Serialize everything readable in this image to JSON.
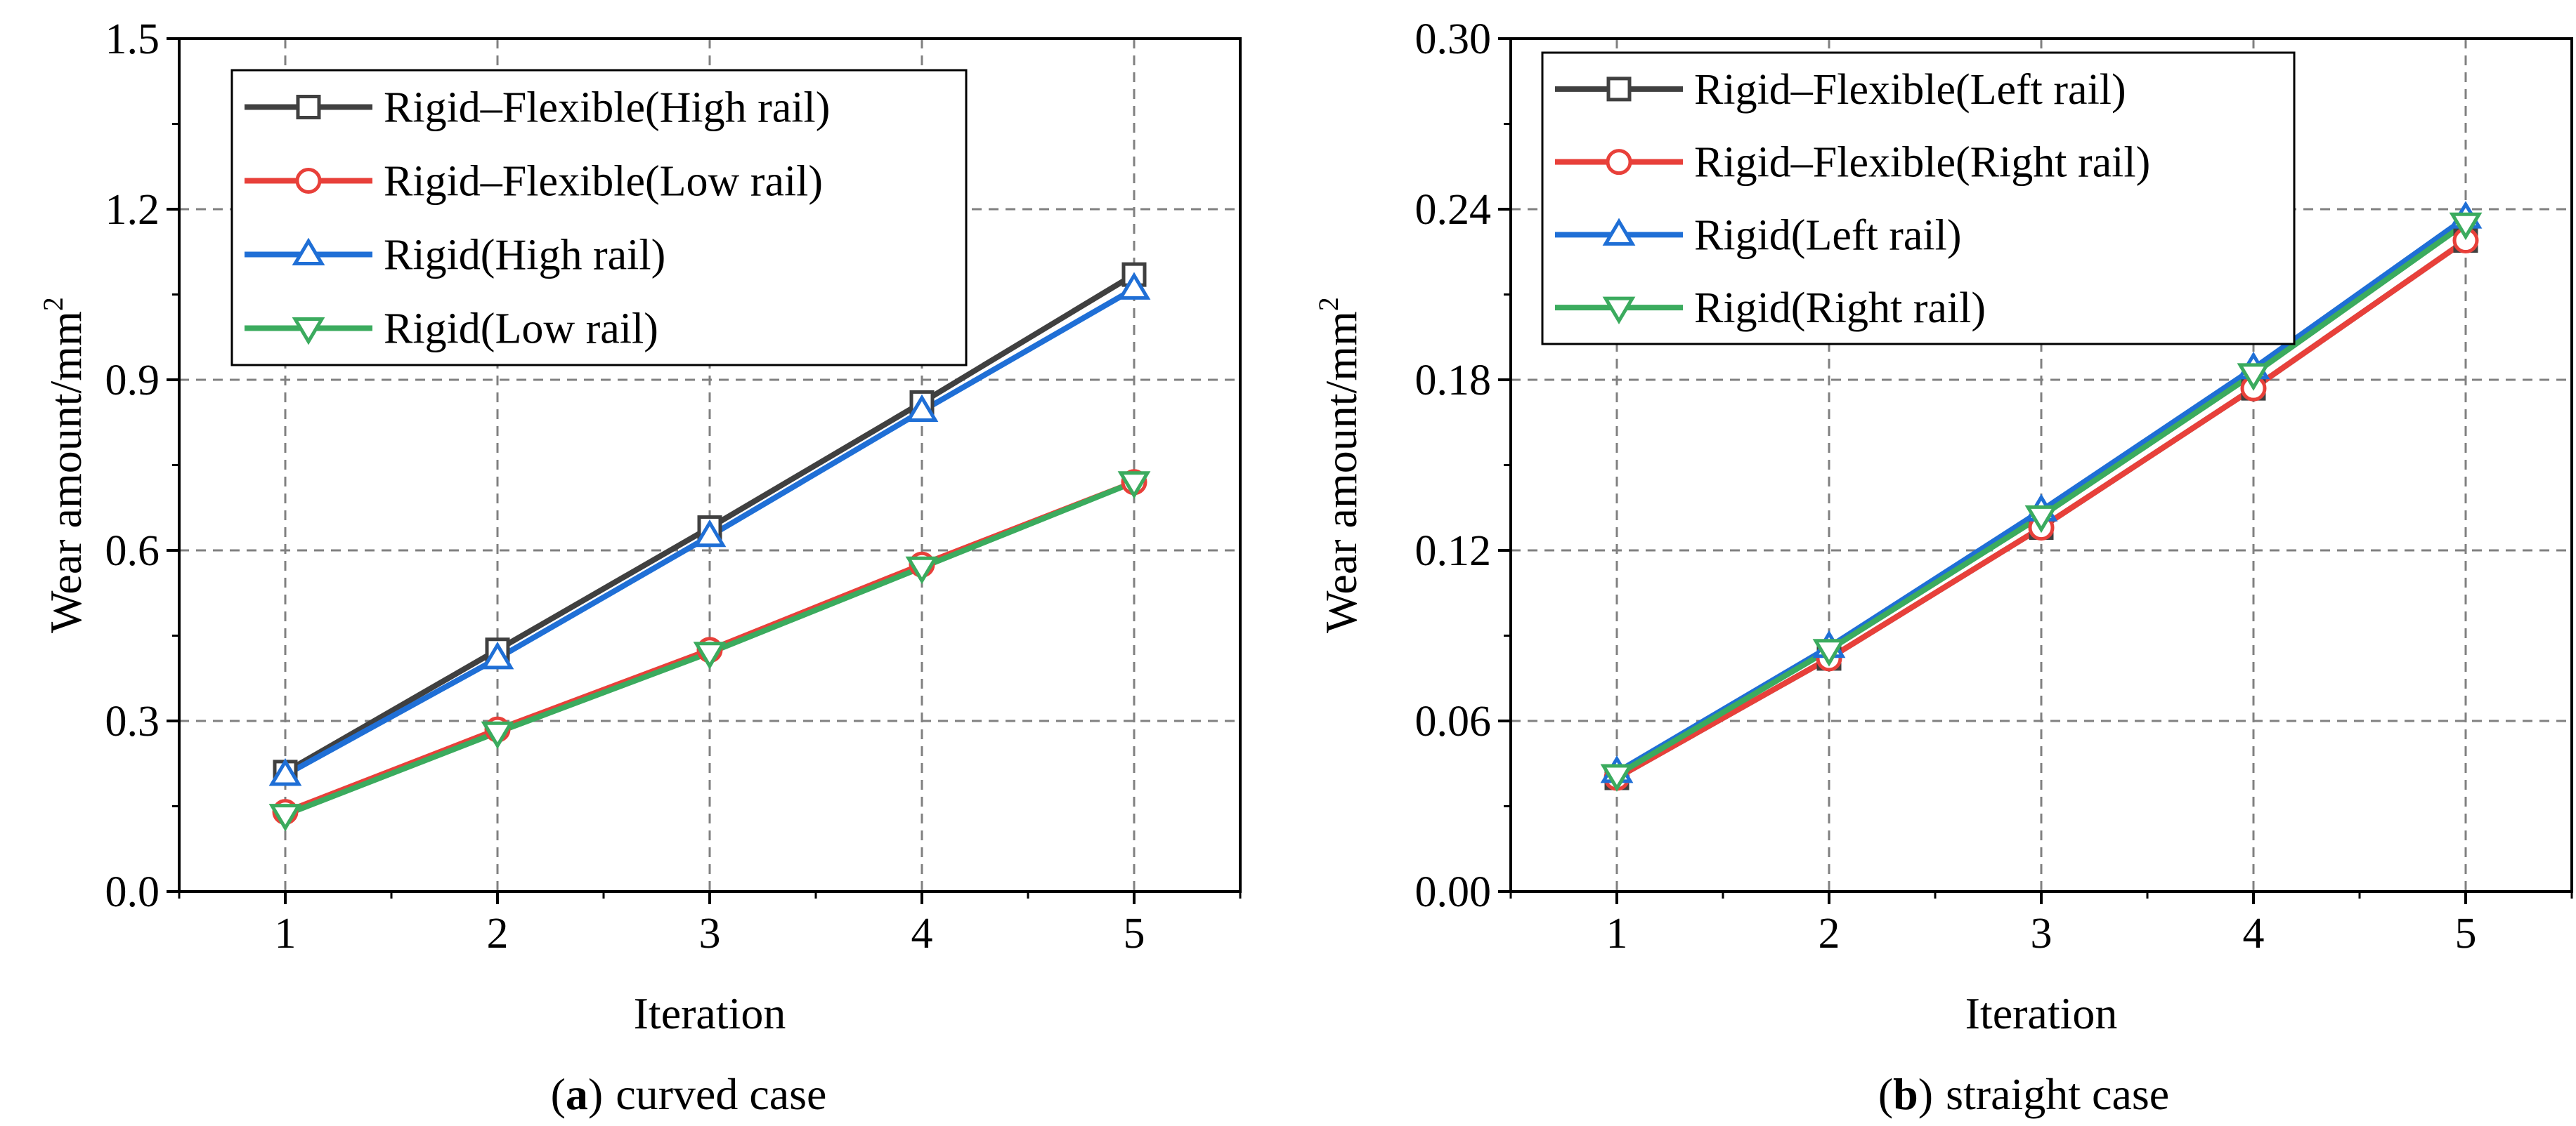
{
  "chart_data": [
    {
      "type": "line",
      "caption": {
        "open": "(",
        "letter": "a",
        "close": ")",
        "text": "curved case"
      },
      "xlabel": "Iteration",
      "ylabel": "Wear amount/mm",
      "ylabel_sup": "2",
      "x": [
        1,
        2,
        3,
        4,
        5
      ],
      "xlim": [
        0.5,
        5.5
      ],
      "ylim": [
        0.0,
        1.5
      ],
      "x_ticks": [
        "1",
        "2",
        "3",
        "4",
        "5"
      ],
      "y_ticks": [
        0.0,
        0.3,
        0.6,
        0.9,
        1.2,
        1.5
      ],
      "y_tick_labels": [
        "0.0",
        "0.3",
        "0.6",
        "0.9",
        "1.2",
        "1.5"
      ],
      "grid": true,
      "legend_position": "top-left",
      "series": [
        {
          "name": "Rigid–Flexible(High rail)",
          "color": "#404040",
          "marker": "square",
          "values": [
            0.21,
            0.425,
            0.64,
            0.86,
            1.085
          ]
        },
        {
          "name": "Rigid–Flexible(Low rail)",
          "color": "#e8403a",
          "marker": "circle",
          "values": [
            0.14,
            0.285,
            0.425,
            0.575,
            0.72
          ]
        },
        {
          "name": "Rigid(High rail)",
          "color": "#1f6fd6",
          "marker": "triangle-up",
          "values": [
            0.205,
            0.41,
            0.625,
            0.845,
            1.06
          ]
        },
        {
          "name": "Rigid(Low rail)",
          "color": "#3bab5e",
          "marker": "triangle-down",
          "values": [
            0.135,
            0.28,
            0.42,
            0.57,
            0.72
          ]
        }
      ]
    },
    {
      "type": "line",
      "caption": {
        "open": "(",
        "letter": "b",
        "close": ")",
        "text": "straight case"
      },
      "xlabel": "Iteration",
      "ylabel": "Wear amount/mm",
      "ylabel_sup": "2",
      "x": [
        1,
        2,
        3,
        4,
        5
      ],
      "xlim": [
        0.5,
        5.5
      ],
      "ylim": [
        0.0,
        0.3
      ],
      "x_ticks": [
        "1",
        "2",
        "3",
        "4",
        "5"
      ],
      "y_ticks": [
        0.0,
        0.06,
        0.12,
        0.18,
        0.24,
        0.3
      ],
      "y_tick_labels": [
        "0.00",
        "0.06",
        "0.12",
        "0.18",
        "0.24",
        "0.30"
      ],
      "grid": true,
      "legend_position": "top-left",
      "series": [
        {
          "name": "Rigid–Flexible(Left rail)",
          "color": "#404040",
          "marker": "square",
          "values": [
            0.04,
            0.082,
            0.128,
            0.177,
            0.229
          ]
        },
        {
          "name": "Rigid–Flexible(Right rail)",
          "color": "#e8403a",
          "marker": "circle",
          "values": [
            0.04,
            0.082,
            0.128,
            0.177,
            0.229
          ]
        },
        {
          "name": "Rigid(Left rail)",
          "color": "#1f6fd6",
          "marker": "triangle-up",
          "values": [
            0.042,
            0.086,
            0.134,
            0.184,
            0.237
          ]
        },
        {
          "name": "Rigid(Right rail)",
          "color": "#3bab5e",
          "marker": "triangle-down",
          "values": [
            0.041,
            0.085,
            0.132,
            0.182,
            0.235
          ]
        }
      ]
    }
  ]
}
